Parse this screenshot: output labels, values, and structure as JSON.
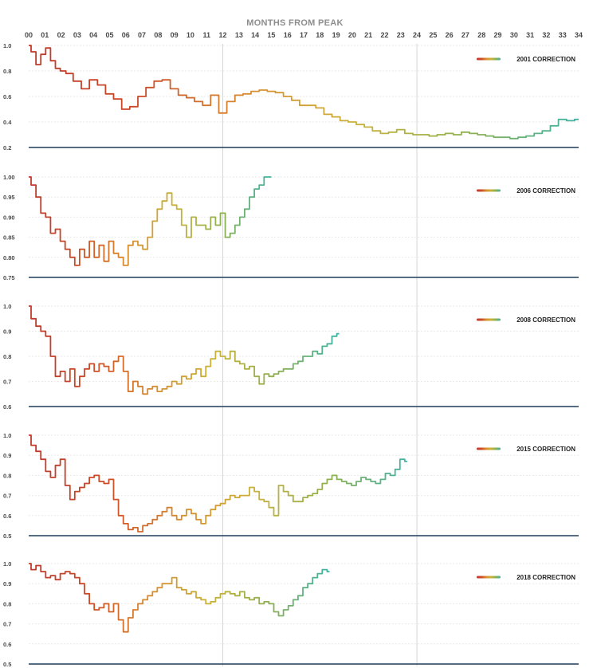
{
  "title": "MONTHS FROM PEAK",
  "x_ticks": [
    "00",
    "01",
    "02",
    "03",
    "04",
    "05",
    "06",
    "07",
    "08",
    "09",
    "10",
    "11",
    "12",
    "13",
    "14",
    "15",
    "16",
    "17",
    "18",
    "19",
    "20",
    "21",
    "22",
    "23",
    "24",
    "25",
    "26",
    "27",
    "28",
    "29",
    "30",
    "31",
    "32",
    "33",
    "34"
  ],
  "colors": {
    "gradient": [
      "#c0392b",
      "#cc4a27",
      "#d98d2f",
      "#c9b23a",
      "#8db050",
      "#3fb3a6"
    ],
    "baseline": "#1f3c5a",
    "vline": "#d6d6d6",
    "grid": "#e9e9e9"
  },
  "chart_data": [
    {
      "type": "line",
      "name": "2001 CORRECTION",
      "xlim": [
        0,
        34
      ],
      "ylim": [
        0.2,
        1.0
      ],
      "y_ticks": [
        "1.0",
        "0.8",
        "0.6",
        "0.4",
        "0.2"
      ],
      "y_tick_values": [
        1.0,
        0.8,
        0.6,
        0.4,
        0.2
      ],
      "x": [
        0,
        0.3,
        0.6,
        0.9,
        1.2,
        1.5,
        1.8,
        2.1,
        2.5,
        3,
        3.5,
        4,
        4.5,
        5,
        5.5,
        6,
        6.5,
        7,
        7.5,
        8,
        8.5,
        9,
        9.5,
        10,
        10.5,
        11,
        11.5,
        12,
        12.5,
        13,
        13.5,
        14,
        14.5,
        15,
        15.5,
        16,
        16.5,
        17,
        17.5,
        18,
        18.5,
        19,
        19.5,
        20,
        20.5,
        21,
        21.5,
        22,
        22.5,
        23,
        23.5,
        24,
        24.5,
        25,
        25.5,
        26,
        26.5,
        27,
        27.5,
        28,
        28.5,
        29,
        29.5,
        30,
        30.5,
        31,
        31.5,
        32,
        32.5,
        33,
        33.5,
        34
      ],
      "values": [
        1.0,
        0.95,
        0.85,
        0.93,
        0.98,
        0.88,
        0.82,
        0.8,
        0.78,
        0.72,
        0.66,
        0.73,
        0.69,
        0.62,
        0.58,
        0.5,
        0.52,
        0.6,
        0.67,
        0.72,
        0.73,
        0.66,
        0.61,
        0.59,
        0.56,
        0.53,
        0.61,
        0.47,
        0.56,
        0.61,
        0.62,
        0.64,
        0.65,
        0.64,
        0.63,
        0.6,
        0.57,
        0.53,
        0.53,
        0.51,
        0.46,
        0.44,
        0.41,
        0.4,
        0.38,
        0.36,
        0.33,
        0.31,
        0.32,
        0.34,
        0.31,
        0.3,
        0.3,
        0.29,
        0.3,
        0.31,
        0.3,
        0.32,
        0.31,
        0.3,
        0.29,
        0.28,
        0.28,
        0.27,
        0.28,
        0.29,
        0.31,
        0.33,
        0.37,
        0.42,
        0.41,
        0.42
      ]
    },
    {
      "type": "line",
      "name": "2006 CORRECTION",
      "xlim": [
        0,
        34
      ],
      "ylim": [
        0.75,
        1.0
      ],
      "y_ticks": [
        "1.00",
        "0.95",
        "0.90",
        "0.85",
        "0.80",
        "0.75"
      ],
      "y_tick_values": [
        1.0,
        0.95,
        0.9,
        0.85,
        0.8,
        0.75
      ],
      "x": [
        0,
        0.3,
        0.6,
        0.9,
        1.2,
        1.5,
        1.8,
        2.1,
        2.4,
        2.7,
        3,
        3.3,
        3.6,
        3.9,
        4.2,
        4.5,
        4.8,
        5.1,
        5.4,
        5.7,
        6,
        6.3,
        6.6,
        6.9,
        7.2,
        7.5,
        7.8,
        8.1,
        8.4,
        8.7,
        9,
        9.3,
        9.6,
        9.9,
        10.2,
        10.5,
        10.8,
        11.1,
        11.4,
        11.7,
        12,
        12.3,
        12.6,
        12.9,
        13.2,
        13.5,
        13.8,
        14.1,
        14.4,
        14.7,
        15
      ],
      "values": [
        1.0,
        0.98,
        0.95,
        0.91,
        0.9,
        0.86,
        0.87,
        0.84,
        0.82,
        0.8,
        0.78,
        0.82,
        0.8,
        0.84,
        0.8,
        0.83,
        0.79,
        0.84,
        0.81,
        0.8,
        0.78,
        0.83,
        0.84,
        0.83,
        0.82,
        0.85,
        0.89,
        0.92,
        0.94,
        0.96,
        0.93,
        0.92,
        0.88,
        0.85,
        0.9,
        0.88,
        0.88,
        0.87,
        0.9,
        0.88,
        0.91,
        0.85,
        0.86,
        0.88,
        0.9,
        0.92,
        0.95,
        0.97,
        0.98,
        1.0,
        1.0
      ]
    },
    {
      "type": "line",
      "name": "2008 CORRECTION",
      "xlim": [
        0,
        34
      ],
      "ylim": [
        0.6,
        1.0
      ],
      "y_ticks": [
        "1.0",
        "0.9",
        "0.8",
        "0.7",
        "0.6"
      ],
      "y_tick_values": [
        1.0,
        0.9,
        0.8,
        0.7,
        0.6
      ],
      "x": [
        0,
        0.3,
        0.6,
        0.9,
        1.2,
        1.5,
        1.8,
        2.1,
        2.4,
        2.7,
        3,
        3.3,
        3.6,
        3.9,
        4.2,
        4.5,
        4.8,
        5.1,
        5.4,
        5.7,
        6,
        6.3,
        6.6,
        6.9,
        7.2,
        7.5,
        7.8,
        8.1,
        8.4,
        8.7,
        9,
        9.3,
        9.6,
        9.9,
        10.2,
        10.5,
        10.8,
        11.1,
        11.4,
        11.7,
        12,
        12.3,
        12.6,
        12.9,
        13.2,
        13.5,
        13.8,
        14.1,
        14.4,
        14.7,
        15,
        15.3,
        15.6,
        15.9,
        16.2,
        16.5,
        16.8,
        17.1,
        17.4,
        17.7,
        18,
        18.3,
        18.6,
        18.9,
        19.2
      ],
      "values": [
        1.0,
        0.95,
        0.92,
        0.9,
        0.88,
        0.8,
        0.72,
        0.74,
        0.7,
        0.75,
        0.68,
        0.72,
        0.75,
        0.77,
        0.74,
        0.77,
        0.76,
        0.74,
        0.78,
        0.8,
        0.74,
        0.66,
        0.7,
        0.68,
        0.65,
        0.67,
        0.68,
        0.66,
        0.67,
        0.68,
        0.7,
        0.69,
        0.72,
        0.71,
        0.73,
        0.75,
        0.72,
        0.76,
        0.79,
        0.82,
        0.8,
        0.79,
        0.82,
        0.78,
        0.77,
        0.75,
        0.76,
        0.72,
        0.69,
        0.73,
        0.72,
        0.73,
        0.74,
        0.75,
        0.75,
        0.77,
        0.78,
        0.8,
        0.8,
        0.82,
        0.81,
        0.84,
        0.85,
        0.88,
        0.89
      ]
    },
    {
      "type": "line",
      "name": "2015 CORRECTION",
      "xlim": [
        0,
        34
      ],
      "ylim": [
        0.5,
        1.0
      ],
      "y_ticks": [
        "1.0",
        "0.9",
        "0.8",
        "0.7",
        "0.6",
        "0.5"
      ],
      "y_tick_values": [
        1.0,
        0.9,
        0.8,
        0.7,
        0.6,
        0.5
      ],
      "x": [
        0,
        0.3,
        0.6,
        0.9,
        1.2,
        1.5,
        1.8,
        2.1,
        2.4,
        2.7,
        3,
        3.3,
        3.6,
        3.9,
        4.2,
        4.5,
        4.8,
        5.1,
        5.4,
        5.7,
        6,
        6.3,
        6.6,
        6.9,
        7.2,
        7.5,
        7.8,
        8.1,
        8.4,
        8.7,
        9,
        9.3,
        9.6,
        9.9,
        10.2,
        10.5,
        10.8,
        11.1,
        11.4,
        11.7,
        12,
        12.3,
        12.6,
        12.9,
        13.2,
        13.5,
        13.8,
        14.1,
        14.4,
        14.7,
        15,
        15.3,
        15.6,
        15.9,
        16.2,
        16.5,
        16.8,
        17.1,
        17.4,
        17.7,
        18,
        18.3,
        18.6,
        18.9,
        19.2,
        19.5,
        19.8,
        20.1,
        20.4,
        20.7,
        21,
        21.3,
        21.6,
        21.9,
        22.2,
        22.5,
        22.8,
        23.1,
        23.4
      ],
      "values": [
        1.0,
        0.95,
        0.92,
        0.88,
        0.82,
        0.79,
        0.85,
        0.88,
        0.75,
        0.68,
        0.72,
        0.74,
        0.76,
        0.79,
        0.8,
        0.77,
        0.76,
        0.78,
        0.68,
        0.6,
        0.56,
        0.53,
        0.54,
        0.52,
        0.55,
        0.56,
        0.58,
        0.6,
        0.62,
        0.64,
        0.6,
        0.58,
        0.6,
        0.63,
        0.61,
        0.58,
        0.56,
        0.6,
        0.63,
        0.65,
        0.66,
        0.68,
        0.7,
        0.69,
        0.7,
        0.7,
        0.74,
        0.72,
        0.68,
        0.67,
        0.64,
        0.6,
        0.75,
        0.72,
        0.7,
        0.67,
        0.67,
        0.69,
        0.7,
        0.71,
        0.73,
        0.76,
        0.78,
        0.8,
        0.78,
        0.77,
        0.76,
        0.75,
        0.77,
        0.79,
        0.78,
        0.77,
        0.76,
        0.78,
        0.81,
        0.8,
        0.83,
        0.88,
        0.87
      ]
    },
    {
      "type": "line",
      "name": "2018 CORRECTION",
      "xlim": [
        0,
        34
      ],
      "ylim": [
        0.5,
        1.0
      ],
      "y_ticks": [
        "1.0",
        "0.9",
        "0.8",
        "0.7",
        "0.6",
        "0.5"
      ],
      "y_tick_values": [
        1.0,
        0.9,
        0.8,
        0.7,
        0.6,
        0.5
      ],
      "x": [
        0,
        0.3,
        0.6,
        0.9,
        1.2,
        1.5,
        1.8,
        2.1,
        2.4,
        2.7,
        3,
        3.3,
        3.6,
        3.9,
        4.2,
        4.5,
        4.8,
        5.1,
        5.4,
        5.7,
        6,
        6.3,
        6.6,
        6.9,
        7.2,
        7.5,
        7.8,
        8.1,
        8.4,
        8.7,
        9,
        9.3,
        9.6,
        9.9,
        10.2,
        10.5,
        10.8,
        11.1,
        11.4,
        11.7,
        12,
        12.3,
        12.6,
        12.9,
        13.2,
        13.5,
        13.8,
        14.1,
        14.4,
        14.7,
        15,
        15.3,
        15.6,
        15.9,
        16.2,
        16.5,
        16.8,
        17.1,
        17.4,
        17.7,
        18,
        18.3,
        18.6
      ],
      "values": [
        1.0,
        0.97,
        0.99,
        0.96,
        0.93,
        0.94,
        0.92,
        0.95,
        0.96,
        0.95,
        0.93,
        0.9,
        0.85,
        0.8,
        0.77,
        0.78,
        0.8,
        0.76,
        0.8,
        0.72,
        0.66,
        0.73,
        0.77,
        0.8,
        0.82,
        0.84,
        0.86,
        0.88,
        0.9,
        0.9,
        0.93,
        0.88,
        0.87,
        0.85,
        0.86,
        0.83,
        0.82,
        0.8,
        0.81,
        0.83,
        0.85,
        0.86,
        0.85,
        0.84,
        0.86,
        0.83,
        0.82,
        0.83,
        0.8,
        0.81,
        0.8,
        0.76,
        0.74,
        0.77,
        0.79,
        0.82,
        0.84,
        0.88,
        0.9,
        0.93,
        0.95,
        0.97,
        0.96
      ]
    }
  ]
}
